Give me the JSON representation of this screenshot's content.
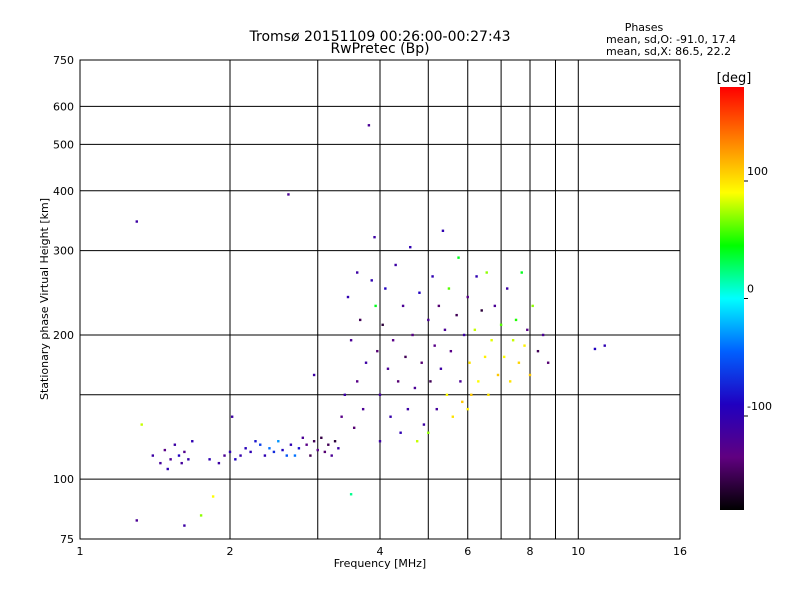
{
  "chart_data": {
    "type": "scatter",
    "title": "Tromsø 20151109 00:26:00-00:27:43",
    "subtitle": "RwPretec (Bp)",
    "xlabel": "Frequency [MHz]",
    "ylabel": "Stationary phase Virtual Height [km]",
    "x_scale": "log",
    "y_scale": "log",
    "xlim": [
      1,
      16
    ],
    "ylim": [
      75,
      750
    ],
    "x_ticks": [
      1,
      2,
      4,
      6,
      8,
      10,
      16
    ],
    "x_minor_grid": [
      3,
      5,
      7,
      9
    ],
    "y_ticks": [
      75,
      100,
      200,
      300,
      400,
      500,
      600,
      750
    ],
    "y_minor_grid": [
      150
    ],
    "grid": true,
    "stats": {
      "heading": "Phases",
      "line_o": "mean, sd,O: -91.0, 17.4",
      "line_x": "mean, sd,X:  86.5, 22.2"
    },
    "colorbar": {
      "label": "[deg]",
      "range": [
        -180,
        180
      ],
      "ticks": [
        100,
        0,
        -100
      ],
      "colors": [
        "#ff0000",
        "#ff8000",
        "#ffff00",
        "#00ff00",
        "#00ffff",
        "#0060ff",
        "#2000c0",
        "#600080",
        "#000000"
      ]
    },
    "points": [
      {
        "x": 1.3,
        "y": 345,
        "p": -110
      },
      {
        "x": 1.33,
        "y": 130,
        "p": 80
      },
      {
        "x": 1.3,
        "y": 82,
        "p": -120
      },
      {
        "x": 1.4,
        "y": 112,
        "p": -110
      },
      {
        "x": 1.45,
        "y": 108,
        "p": -115
      },
      {
        "x": 1.48,
        "y": 115,
        "p": -130
      },
      {
        "x": 1.5,
        "y": 105,
        "p": -100
      },
      {
        "x": 1.52,
        "y": 110,
        "p": -120
      },
      {
        "x": 1.55,
        "y": 118,
        "p": -110
      },
      {
        "x": 1.58,
        "y": 112,
        "p": -90
      },
      {
        "x": 1.6,
        "y": 108,
        "p": -115
      },
      {
        "x": 1.62,
        "y": 114,
        "p": -125
      },
      {
        "x": 1.65,
        "y": 110,
        "p": -105
      },
      {
        "x": 1.68,
        "y": 120,
        "p": -100
      },
      {
        "x": 1.62,
        "y": 80,
        "p": -110
      },
      {
        "x": 1.75,
        "y": 84,
        "p": 70
      },
      {
        "x": 1.82,
        "y": 110,
        "p": -100
      },
      {
        "x": 1.85,
        "y": 92,
        "p": 90
      },
      {
        "x": 1.9,
        "y": 108,
        "p": -110
      },
      {
        "x": 1.95,
        "y": 112,
        "p": -120
      },
      {
        "x": 2.0,
        "y": 114,
        "p": -100
      },
      {
        "x": 2.02,
        "y": 135,
        "p": -110
      },
      {
        "x": 2.05,
        "y": 110,
        "p": -90
      },
      {
        "x": 2.1,
        "y": 112,
        "p": -105
      },
      {
        "x": 2.15,
        "y": 116,
        "p": -95
      },
      {
        "x": 2.2,
        "y": 114,
        "p": -100
      },
      {
        "x": 2.25,
        "y": 120,
        "p": -80
      },
      {
        "x": 2.3,
        "y": 118,
        "p": -60
      },
      {
        "x": 2.35,
        "y": 112,
        "p": -100
      },
      {
        "x": 2.4,
        "y": 116,
        "p": -40
      },
      {
        "x": 2.45,
        "y": 114,
        "p": -70
      },
      {
        "x": 2.5,
        "y": 120,
        "p": -30
      },
      {
        "x": 2.55,
        "y": 115,
        "p": -90
      },
      {
        "x": 2.6,
        "y": 112,
        "p": -50
      },
      {
        "x": 2.62,
        "y": 393,
        "p": -120
      },
      {
        "x": 2.65,
        "y": 118,
        "p": -100
      },
      {
        "x": 2.7,
        "y": 112,
        "p": -40
      },
      {
        "x": 2.75,
        "y": 116,
        "p": -80
      },
      {
        "x": 2.8,
        "y": 122,
        "p": -120
      },
      {
        "x": 2.85,
        "y": 118,
        "p": -130
      },
      {
        "x": 2.9,
        "y": 112,
        "p": -150
      },
      {
        "x": 2.95,
        "y": 165,
        "p": -110
      },
      {
        "x": 2.95,
        "y": 120,
        "p": -150
      },
      {
        "x": 3.0,
        "y": 115,
        "p": -130
      },
      {
        "x": 3.05,
        "y": 122,
        "p": -155
      },
      {
        "x": 3.1,
        "y": 114,
        "p": -140
      },
      {
        "x": 3.15,
        "y": 118,
        "p": -150
      },
      {
        "x": 3.2,
        "y": 112,
        "p": -120
      },
      {
        "x": 3.25,
        "y": 120,
        "p": -160
      },
      {
        "x": 3.3,
        "y": 116,
        "p": -110
      },
      {
        "x": 3.35,
        "y": 135,
        "p": -130
      },
      {
        "x": 3.4,
        "y": 150,
        "p": -110
      },
      {
        "x": 3.45,
        "y": 240,
        "p": -100
      },
      {
        "x": 3.5,
        "y": 195,
        "p": -120
      },
      {
        "x": 3.5,
        "y": 93,
        "p": 20
      },
      {
        "x": 3.55,
        "y": 128,
        "p": -140
      },
      {
        "x": 3.6,
        "y": 270,
        "p": -110
      },
      {
        "x": 3.6,
        "y": 160,
        "p": -130
      },
      {
        "x": 3.65,
        "y": 215,
        "p": -150
      },
      {
        "x": 3.7,
        "y": 140,
        "p": -120
      },
      {
        "x": 3.75,
        "y": 175,
        "p": -110
      },
      {
        "x": 3.8,
        "y": 548,
        "p": -120
      },
      {
        "x": 3.85,
        "y": 260,
        "p": -100
      },
      {
        "x": 3.9,
        "y": 320,
        "p": -110
      },
      {
        "x": 3.92,
        "y": 230,
        "p": 40
      },
      {
        "x": 3.95,
        "y": 185,
        "p": -140
      },
      {
        "x": 4.0,
        "y": 150,
        "p": -115
      },
      {
        "x": 4.0,
        "y": 120,
        "p": -110
      },
      {
        "x": 4.05,
        "y": 210,
        "p": -160
      },
      {
        "x": 4.1,
        "y": 250,
        "p": -90
      },
      {
        "x": 4.15,
        "y": 170,
        "p": -120
      },
      {
        "x": 4.2,
        "y": 135,
        "p": -105
      },
      {
        "x": 4.25,
        "y": 195,
        "p": -130
      },
      {
        "x": 4.3,
        "y": 280,
        "p": -110
      },
      {
        "x": 4.35,
        "y": 160,
        "p": -140
      },
      {
        "x": 4.4,
        "y": 125,
        "p": -100
      },
      {
        "x": 4.45,
        "y": 230,
        "p": -120
      },
      {
        "x": 4.5,
        "y": 180,
        "p": -150
      },
      {
        "x": 4.55,
        "y": 140,
        "p": -110
      },
      {
        "x": 4.6,
        "y": 305,
        "p": -100
      },
      {
        "x": 4.65,
        "y": 200,
        "p": -130
      },
      {
        "x": 4.7,
        "y": 155,
        "p": -120
      },
      {
        "x": 4.75,
        "y": 120,
        "p": 80
      },
      {
        "x": 4.8,
        "y": 245,
        "p": -90
      },
      {
        "x": 4.85,
        "y": 175,
        "p": -140
      },
      {
        "x": 4.9,
        "y": 130,
        "p": -110
      },
      {
        "x": 5.0,
        "y": 215,
        "p": -120
      },
      {
        "x": 5.0,
        "y": 125,
        "p": 70
      },
      {
        "x": 5.05,
        "y": 160,
        "p": -150
      },
      {
        "x": 5.1,
        "y": 265,
        "p": -100
      },
      {
        "x": 5.15,
        "y": 190,
        "p": -130
      },
      {
        "x": 5.2,
        "y": 140,
        "p": -115
      },
      {
        "x": 5.25,
        "y": 230,
        "p": -140
      },
      {
        "x": 5.3,
        "y": 170,
        "p": -110
      },
      {
        "x": 5.35,
        "y": 330,
        "p": -100
      },
      {
        "x": 5.4,
        "y": 205,
        "p": -120
      },
      {
        "x": 5.45,
        "y": 150,
        "p": 90
      },
      {
        "x": 5.5,
        "y": 250,
        "p": 60
      },
      {
        "x": 5.55,
        "y": 185,
        "p": -130
      },
      {
        "x": 5.6,
        "y": 135,
        "p": 100
      },
      {
        "x": 5.7,
        "y": 220,
        "p": -150
      },
      {
        "x": 5.75,
        "y": 290,
        "p": 40
      },
      {
        "x": 5.8,
        "y": 160,
        "p": -120
      },
      {
        "x": 5.85,
        "y": 145,
        "p": 110
      },
      {
        "x": 5.9,
        "y": 200,
        "p": -110
      },
      {
        "x": 6.0,
        "y": 140,
        "p": 95
      },
      {
        "x": 6.0,
        "y": 240,
        "p": -130
      },
      {
        "x": 6.05,
        "y": 175,
        "p": 100
      },
      {
        "x": 6.1,
        "y": 150,
        "p": 110
      },
      {
        "x": 6.2,
        "y": 205,
        "p": 80
      },
      {
        "x": 6.25,
        "y": 265,
        "p": -100
      },
      {
        "x": 6.3,
        "y": 160,
        "p": 90
      },
      {
        "x": 6.4,
        "y": 225,
        "p": -160
      },
      {
        "x": 6.5,
        "y": 180,
        "p": 95
      },
      {
        "x": 6.55,
        "y": 270,
        "p": 70
      },
      {
        "x": 6.6,
        "y": 150,
        "p": 100
      },
      {
        "x": 6.7,
        "y": 195,
        "p": 85
      },
      {
        "x": 6.8,
        "y": 230,
        "p": -120
      },
      {
        "x": 6.9,
        "y": 165,
        "p": 110
      },
      {
        "x": 7.0,
        "y": 210,
        "p": 60
      },
      {
        "x": 7.1,
        "y": 180,
        "p": 90
      },
      {
        "x": 7.2,
        "y": 250,
        "p": -110
      },
      {
        "x": 7.3,
        "y": 160,
        "p": 100
      },
      {
        "x": 7.4,
        "y": 195,
        "p": 80
      },
      {
        "x": 7.5,
        "y": 215,
        "p": 50
      },
      {
        "x": 7.6,
        "y": 175,
        "p": 105
      },
      {
        "x": 7.7,
        "y": 270,
        "p": 40
      },
      {
        "x": 7.8,
        "y": 190,
        "p": 95
      },
      {
        "x": 7.9,
        "y": 205,
        "p": -130
      },
      {
        "x": 8.0,
        "y": 165,
        "p": 110
      },
      {
        "x": 8.1,
        "y": 230,
        "p": 70
      },
      {
        "x": 8.3,
        "y": 185,
        "p": -150
      },
      {
        "x": 8.5,
        "y": 200,
        "p": -120
      },
      {
        "x": 8.7,
        "y": 175,
        "p": -140
      },
      {
        "x": 10.8,
        "y": 187,
        "p": -90
      },
      {
        "x": 11.3,
        "y": 190,
        "p": -100
      }
    ]
  }
}
